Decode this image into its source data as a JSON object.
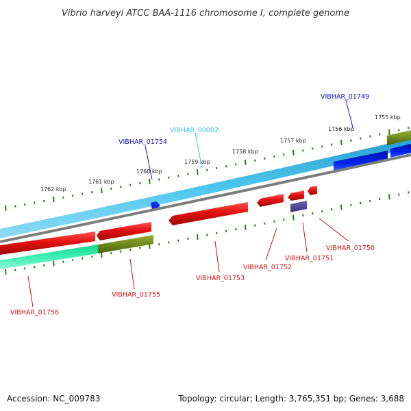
{
  "title": "Vibrio harveyi ATCC BAA-1116 chromosome I, complete genome",
  "footer": {
    "accession": "Accession: NC_009783",
    "summary": "Topology: circular; Length: 3,765,351 bp; Genes: 3,688"
  },
  "colors": {
    "outer_track": "#33b5dd",
    "highlight_track": "#0018d8",
    "forward_gene": "#e01010",
    "reverse_gene_green": "#2ee6a8",
    "olive_gene": "#6f8a1d",
    "purple_gene": "#4b4593",
    "tick_green": "#2a7a1f",
    "blue_label": "#1010c8",
    "cyan_label": "#3cc0e8",
    "red_label": "#cc1010",
    "gray_backbone": "#7d7d7d"
  },
  "scale_labels": [
    "1762 kbp",
    "1761 kbp",
    "1760 kbp",
    "1759 kbp",
    "1758 kbp",
    "1757 kbp",
    "1756 kbp",
    "1755 kbp"
  ],
  "gene_labels": [
    {
      "id": "VIBHAR_01749",
      "color": "blue"
    },
    {
      "id": "VIBHAR_00002",
      "color": "cyan"
    },
    {
      "id": "VIBHAR_01754",
      "color": "blue"
    },
    {
      "id": "VIBHAR_01750",
      "color": "red"
    },
    {
      "id": "VIBHAR_01751",
      "color": "red"
    },
    {
      "id": "VIBHAR_01752",
      "color": "red"
    },
    {
      "id": "VIBHAR_01753",
      "color": "red"
    },
    {
      "id": "VIBHAR_01755",
      "color": "red"
    },
    {
      "id": "VIBHAR_01756",
      "color": "red"
    }
  ]
}
